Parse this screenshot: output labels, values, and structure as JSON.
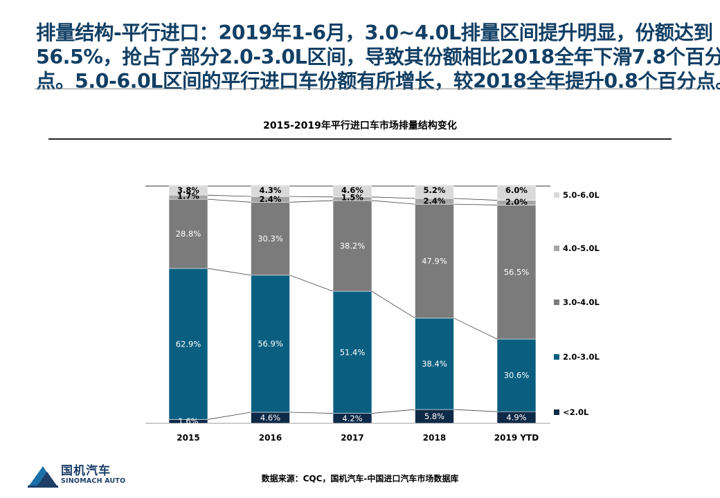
{
  "headline": {
    "line1": "排量结构-平行进口：2019年1-6月，3.0~4.0L排量区间提升明显，份额达到",
    "line2": "56.5%，抢占了部分2.0-3.0L区间，导致其份额相比2018全年下滑7.8个百分",
    "line3": "点。5.0-6.0L区间的平行进口车份额有所增长，较2018全年提升0.8个百分点。"
  },
  "colors": {
    "headline": "#123f64",
    "lt2": "#0f2a47",
    "s2to3": "#0a5f80",
    "s3to4": "#7b7b7b",
    "s4to5": "#a6a6a6",
    "s5to6": "#d9d9d9"
  },
  "chart_data": {
    "type": "bar",
    "stacked": true,
    "normalized": true,
    "title": "2015-2019年平行进口车市场排量结构变化",
    "categories": [
      "2015",
      "2016",
      "2017",
      "2018",
      "2019 YTD"
    ],
    "series": [
      {
        "name": "<2.0L",
        "values": [
          1.6,
          4.6,
          4.2,
          5.8,
          4.9
        ],
        "labels": [
          "1.6%",
          "4.6%",
          "4.2%",
          "5.8%",
          "4.9%"
        ]
      },
      {
        "name": "2.0-3.0L",
        "values": [
          62.9,
          56.9,
          51.4,
          38.4,
          30.6
        ],
        "labels": [
          "62.9%",
          "56.9%",
          "51.4%",
          "38.4%",
          "30.6%"
        ]
      },
      {
        "name": "3.0-4.0L",
        "values": [
          28.8,
          30.3,
          38.2,
          47.9,
          56.5
        ],
        "labels": [
          "28.8%",
          "30.3%",
          "38.2%",
          "47.9%",
          "56.5%"
        ]
      },
      {
        "name": "4.0-5.0L",
        "values": [
          1.7,
          2.4,
          1.5,
          2.4,
          2.0
        ],
        "labels": [
          "1.7%",
          "2.4%",
          "1.5%",
          "2.4%",
          "2.0%"
        ]
      },
      {
        "name": "5.0-6.0L",
        "values": [
          3.8,
          4.3,
          4.6,
          5.2,
          6.0
        ],
        "labels": [
          "3.8%",
          "4.3%",
          "4.6%",
          "5.2%",
          "6.0%"
        ]
      }
    ],
    "ylim": [
      0,
      100
    ],
    "legend_position": "right"
  },
  "logo": {
    "cn": "国机汽车",
    "en": "SINOMACH AUTO"
  },
  "source": "数据来源：CQC，国机汽车-中国进口汽车市场数据库"
}
